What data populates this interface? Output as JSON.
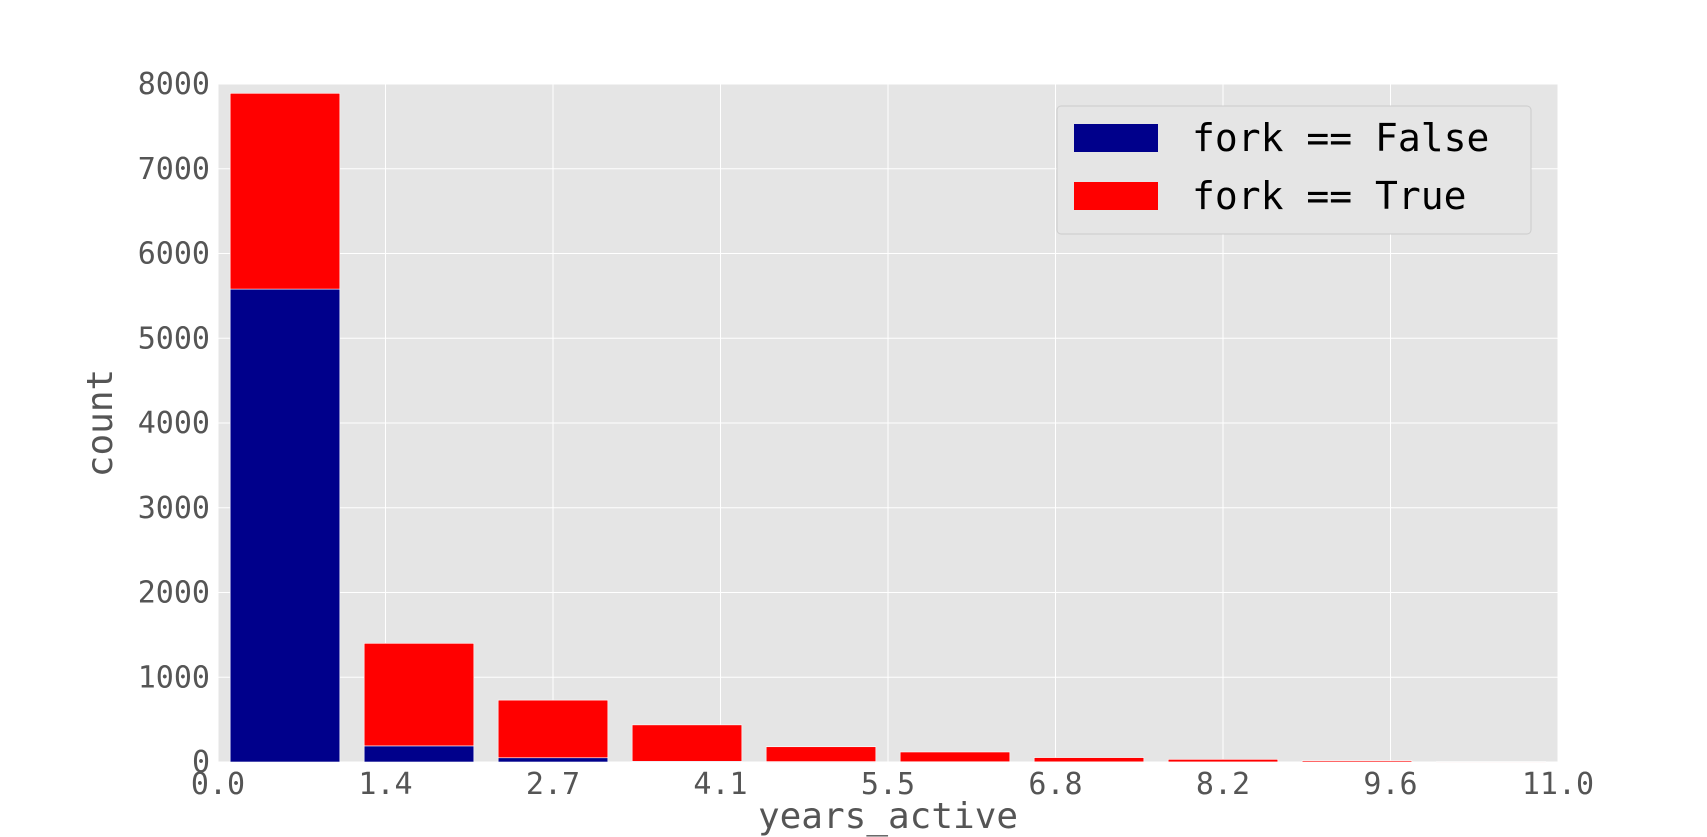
{
  "chart_data": {
    "type": "bar",
    "stacked": true,
    "title": "",
    "xlabel": "years_active",
    "ylabel": "count",
    "xlim": [
      0.0,
      11.0
    ],
    "ylim": [
      0,
      8000
    ],
    "xticks": [
      "0.0",
      "1.4",
      "2.7",
      "4.1",
      "5.5",
      "6.8",
      "8.2",
      "9.6",
      "11.0"
    ],
    "yticks": [
      "0",
      "1000",
      "2000",
      "3000",
      "4000",
      "5000",
      "6000",
      "7000",
      "8000"
    ],
    "grid": true,
    "legend_position": "top-right",
    "bins": [
      [
        0.1,
        1.0
      ],
      [
        1.2,
        2.1
      ],
      [
        2.3,
        3.2
      ],
      [
        3.4,
        4.3
      ],
      [
        4.5,
        5.4
      ],
      [
        5.6,
        6.5
      ],
      [
        6.7,
        7.6
      ],
      [
        7.8,
        8.7
      ],
      [
        8.9,
        9.8
      ],
      [
        10.0,
        10.9
      ]
    ],
    "series": [
      {
        "name": "fork == False",
        "color": "#00008b",
        "values": [
          5580,
          190,
          50,
          8,
          5,
          3,
          2,
          1,
          1,
          0
        ]
      },
      {
        "name": "fork == True",
        "color": "#ff0000",
        "values": [
          2310,
          1210,
          680,
          430,
          175,
          115,
          50,
          30,
          15,
          5
        ]
      }
    ]
  }
}
